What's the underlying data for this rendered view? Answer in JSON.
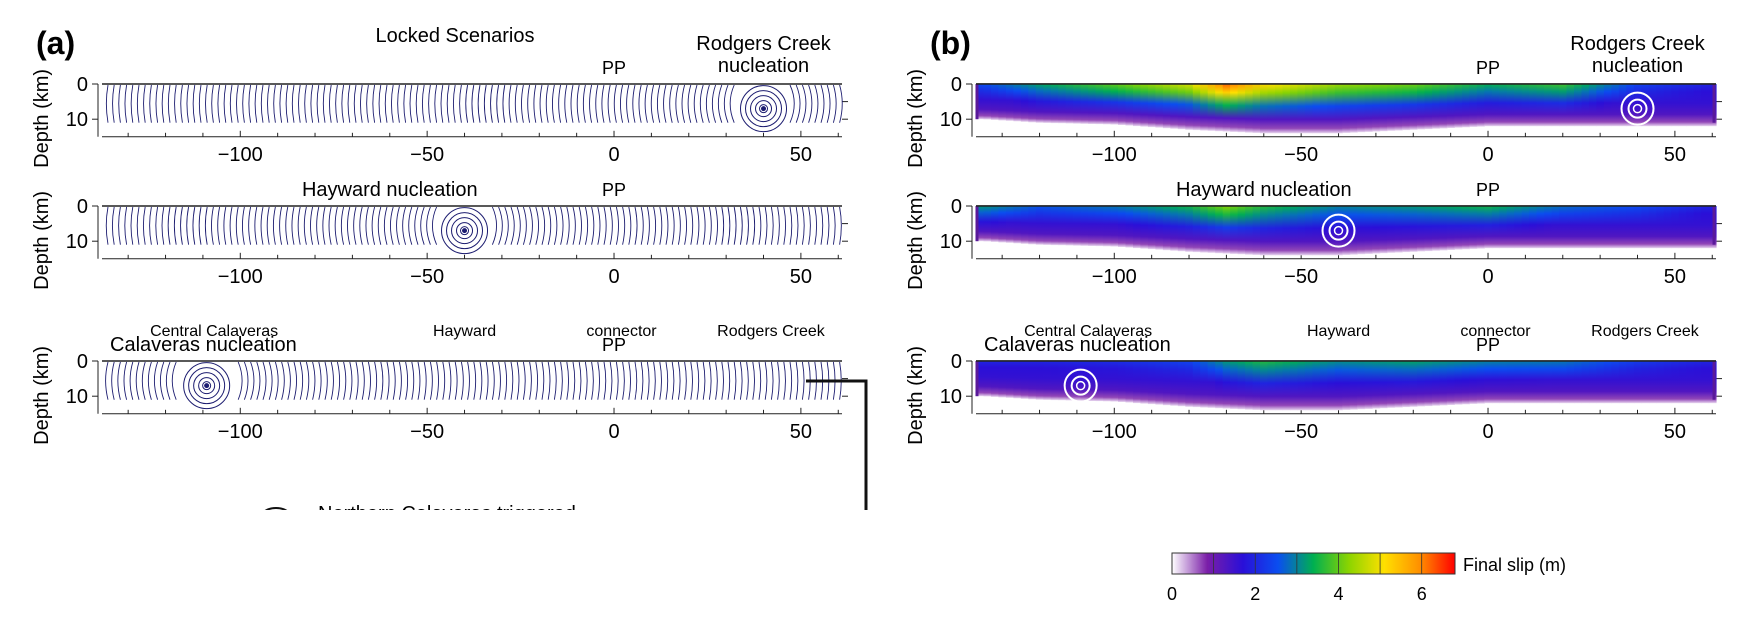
{
  "panels": [
    {
      "letter": "(a)",
      "kind": "rupture_contours"
    },
    {
      "letter": "(b)",
      "kind": "final_slip"
    }
  ],
  "header_a": "Locked Scenarios",
  "pp_label": "PP",
  "ylabel": "Depth (km)",
  "yticks": [
    0,
    10
  ],
  "xticks": [
    -100,
    -50,
    0,
    50
  ],
  "xlim": [
    -137,
    61
  ],
  "ylim_km": [
    0,
    15
  ],
  "scenarios": [
    {
      "title": "Rodgers Creek\nnucleation",
      "title_a_lines": [
        "Rodgers Creek",
        "nucleation"
      ],
      "nucleation_km": 40,
      "nucleation_depth_km": 7
    },
    {
      "title": "Hayward nucleation",
      "nucleation_km": -40,
      "nucleation_depth_km": 7
    },
    {
      "title": "Calaveras nucleation",
      "nucleation_km": -109,
      "nucleation_depth_km": 7
    }
  ],
  "segment_labels": [
    {
      "text": "Central Calaveras",
      "x_km": -107
    },
    {
      "text": "Hayward",
      "x_km": -40
    },
    {
      "text": "connector",
      "x_km": 2
    },
    {
      "text": "Rodgers Creek",
      "x_km": 42
    }
  ],
  "cropped_legend_text": "Northern Calaveras triggered",
  "colorbar": {
    "label": "Final slip (m)",
    "ticks": [
      0,
      2,
      4,
      6
    ],
    "range_m": [
      0,
      6.8
    ],
    "colors": [
      "#ffffff",
      "#7a1ea8",
      "#2a0fd8",
      "#0a4ef0",
      "#00b050",
      "#8cd400",
      "#ffe000",
      "#ff9000",
      "#ff0000"
    ]
  },
  "chart_data": [
    {
      "type": "heatmap",
      "title": "Final slip (m) — Rodgers Creek nucleation",
      "xlabel": "",
      "ylabel": "Depth (km)",
      "xlim": [
        -137,
        61
      ],
      "ylim": [
        15,
        0
      ],
      "x_km": [
        -135,
        -120,
        -100,
        -80,
        -70,
        -60,
        -40,
        -20,
        0,
        20,
        40,
        58
      ],
      "surface_slip_m": [
        2.5,
        3.3,
        4.0,
        4.8,
        6.2,
        5.2,
        4.4,
        4.1,
        3.4,
        3.8,
        2.4,
        2.0
      ],
      "slip_bottom_depth_km": [
        9,
        10,
        10.5,
        12,
        12.5,
        13,
        13,
        12,
        11,
        11,
        11,
        11
      ]
    },
    {
      "type": "heatmap",
      "title": "Final slip (m) — Hayward nucleation",
      "xlabel": "",
      "ylabel": "Depth (km)",
      "xlim": [
        -137,
        61
      ],
      "ylim": [
        15,
        0
      ],
      "x_km": [
        -135,
        -120,
        -100,
        -80,
        -70,
        -60,
        -40,
        -20,
        0,
        20,
        40,
        58
      ],
      "surface_slip_m": [
        3.2,
        2.6,
        2.9,
        3.5,
        4.2,
        3.6,
        3.0,
        3.2,
        3.5,
        2.8,
        2.5,
        2.0
      ],
      "slip_bottom_depth_km": [
        9,
        10,
        10.5,
        12,
        12.5,
        13,
        13,
        12,
        11,
        11,
        11,
        11
      ]
    },
    {
      "type": "heatmap",
      "title": "Final slip (m) — Calaveras nucleation",
      "xlabel": "",
      "ylabel": "Depth (km)",
      "xlim": [
        -137,
        61
      ],
      "ylim": [
        15,
        0
      ],
      "x_km": [
        -135,
        -120,
        -100,
        -80,
        -70,
        -60,
        -40,
        -20,
        0,
        20,
        40,
        58
      ],
      "surface_slip_m": [
        2.0,
        2.0,
        2.1,
        2.4,
        3.2,
        3.6,
        3.1,
        3.3,
        3.0,
        2.9,
        2.3,
        2.0
      ],
      "slip_bottom_depth_km": [
        9,
        10,
        10.5,
        12,
        12.5,
        13,
        13,
        12,
        11,
        11,
        11,
        11
      ]
    }
  ]
}
